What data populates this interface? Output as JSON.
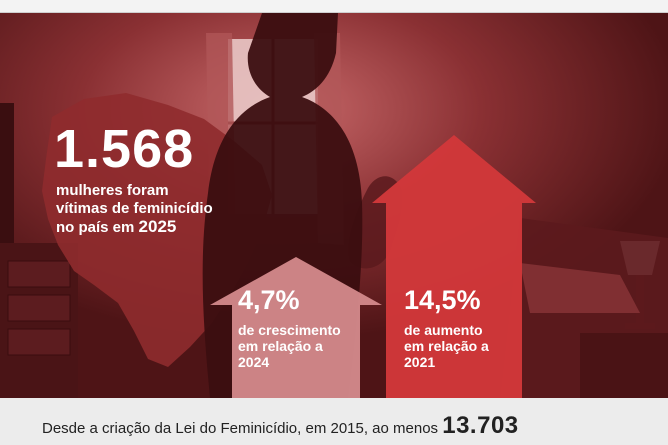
{
  "headline": {
    "number": "1.568",
    "line1": "mulheres foram",
    "line2": "vítimas de feminicídio",
    "line3_prefix": "no país em ",
    "line3_year": "2025"
  },
  "stat_left": {
    "percent": "4,7%",
    "line1": "de crescimento",
    "line2": "em relação a",
    "line3": "2024"
  },
  "stat_right": {
    "percent": "14,5%",
    "line1": "de aumento",
    "line2": "em relação a",
    "line3": "2021"
  },
  "footer": {
    "text": "Desde a criação da Lei do Feminicídio, em 2015, ao menos",
    "number": "13.703"
  },
  "colors": {
    "background": "#6b1e21",
    "map": "#8f2b2d",
    "arrow_left": "#d48a8c",
    "arrow_right": "#d1383a",
    "footer_bg": "#ececec"
  }
}
